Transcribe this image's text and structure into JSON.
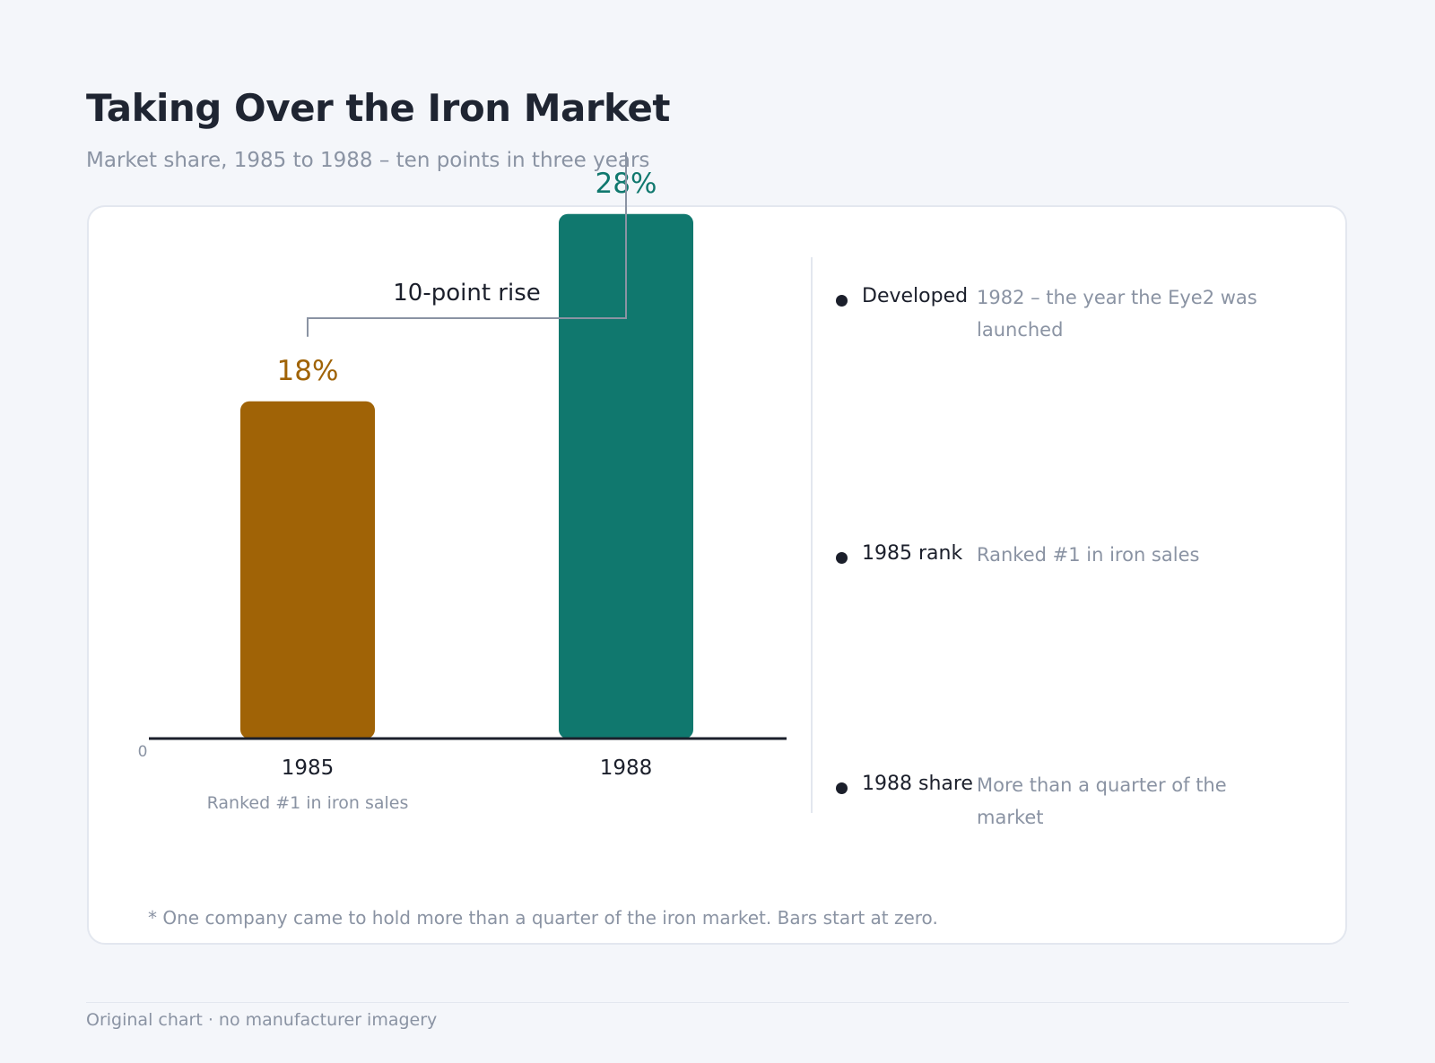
{
  "header": {
    "title": "Taking Over the Iron Market",
    "subtitle": "Market share, 1985 to 1988 – ten points in three years"
  },
  "chart_data": {
    "type": "bar",
    "categories": [
      "1985",
      "1988"
    ],
    "values": [
      18,
      28
    ],
    "value_labels": [
      "18%",
      "28%"
    ],
    "bar_colors": [
      "#a06306",
      "#10786e"
    ],
    "category_sublabels": [
      "Ranked #1 in iron sales",
      ""
    ],
    "ylim": [
      0,
      30
    ],
    "y_ticks": [
      0
    ],
    "grid": false,
    "annotation": {
      "label": "10-point rise",
      "from": "1985",
      "to": "1988"
    }
  },
  "notes": [
    {
      "key": "Developed",
      "value": "1982 – the year the Eye2 was launched"
    },
    {
      "key": "1985 rank",
      "value": "Ranked #1 in iron sales"
    },
    {
      "key": "1988 share",
      "value": "More than a quarter of the market"
    }
  ],
  "footnote": "* One company came to hold more than a quarter of the iron market. Bars start at zero.",
  "credit": "Original chart · no manufacturer imagery",
  "colors": {
    "background": "#f4f6fa",
    "text": "#1f2532",
    "muted": "#8a93a3",
    "bracket": "#8a93a3"
  }
}
